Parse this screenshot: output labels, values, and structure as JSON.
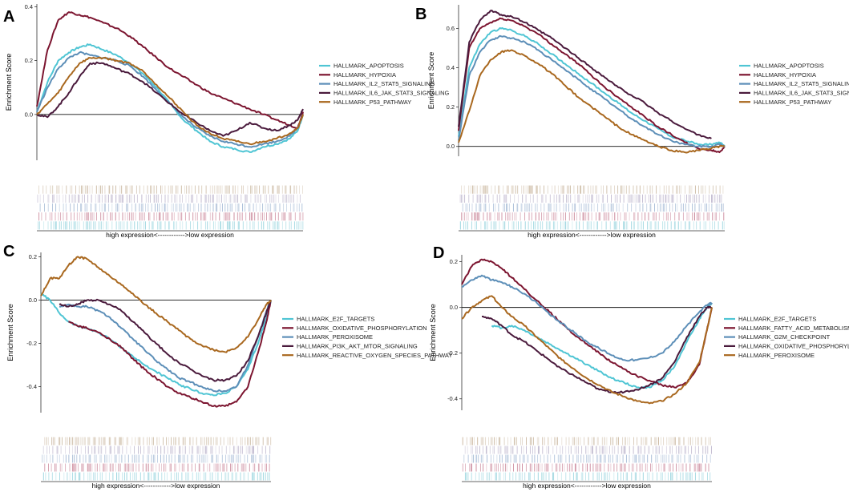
{
  "colors": {
    "cyan": "#4fc5d4",
    "crimson": "#7c1530",
    "steel": "#5d8fb8",
    "plum": "#4a1a3c",
    "ochre": "#a9681f"
  },
  "chart_data": [
    {
      "panel": "A",
      "type": "line",
      "ylabel": "Enrichment Score",
      "xlabel": "high expression<------------>low expression",
      "ylim": [
        -0.17,
        0.41
      ],
      "y_ticks": [
        0.0,
        0.2,
        0.4
      ],
      "y_tick_labels": [
        "0.0",
        "0.2",
        "0.4"
      ],
      "x": [
        0,
        0.04,
        0.08,
        0.12,
        0.16,
        0.2,
        0.25,
        0.3,
        0.35,
        0.4,
        0.45,
        0.5,
        0.55,
        0.6,
        0.65,
        0.7,
        0.75,
        0.8,
        0.85,
        0.9,
        0.95,
        0.98,
        1
      ],
      "series": [
        {
          "name": "HALLMARK_APOPTOSIS",
          "color": "cyan",
          "values": [
            0.01,
            0.12,
            0.2,
            0.23,
            0.25,
            0.26,
            0.24,
            0.22,
            0.19,
            0.15,
            0.1,
            0.04,
            -0.02,
            -0.06,
            -0.1,
            -0.12,
            -0.13,
            -0.14,
            -0.12,
            -0.11,
            -0.09,
            -0.06,
            0.0
          ]
        },
        {
          "name": "HALLMARK_HYPOXIA",
          "color": "crimson",
          "values": [
            0.03,
            0.24,
            0.35,
            0.38,
            0.37,
            0.36,
            0.34,
            0.32,
            0.29,
            0.25,
            0.21,
            0.17,
            0.14,
            0.11,
            0.08,
            0.06,
            0.04,
            0.02,
            0.0,
            -0.02,
            -0.04,
            -0.05,
            0.01
          ]
        },
        {
          "name": "HALLMARK_IL2_STAT5_SIGNALING",
          "color": "steel",
          "values": [
            0.01,
            0.1,
            0.17,
            0.21,
            0.23,
            0.22,
            0.21,
            0.2,
            0.18,
            0.14,
            0.09,
            0.04,
            -0.01,
            -0.05,
            -0.08,
            -0.1,
            -0.11,
            -0.12,
            -0.11,
            -0.1,
            -0.08,
            -0.05,
            0.0
          ]
        },
        {
          "name": "HALLMARK_IL6_JAK_STAT3_SIGNALING",
          "color": "plum",
          "values": [
            0.0,
            -0.01,
            0.03,
            0.08,
            0.14,
            0.19,
            0.19,
            0.17,
            0.15,
            0.12,
            0.08,
            0.04,
            0.0,
            -0.03,
            -0.06,
            -0.08,
            -0.06,
            -0.03,
            -0.05,
            -0.06,
            -0.04,
            -0.02,
            0.02
          ]
        },
        {
          "name": "HALLMARK_P53_PATHWAY",
          "color": "ochre",
          "values": [
            0.0,
            0.04,
            0.08,
            0.14,
            0.19,
            0.21,
            0.21,
            0.2,
            0.19,
            0.16,
            0.11,
            0.06,
            0.01,
            -0.04,
            -0.07,
            -0.09,
            -0.1,
            -0.11,
            -0.1,
            -0.09,
            -0.07,
            -0.05,
            0.0
          ]
        }
      ]
    },
    {
      "panel": "B",
      "type": "line",
      "ylabel": "Enrichment Score",
      "xlabel": "high expression<------------>low expression",
      "ylim": [
        -0.05,
        0.72
      ],
      "y_ticks": [
        0.0,
        0.2,
        0.4,
        0.6
      ],
      "y_tick_labels": [
        "0.0",
        "0.2",
        "0.4",
        "0.6"
      ],
      "x": [
        0,
        0.04,
        0.08,
        0.12,
        0.16,
        0.2,
        0.25,
        0.3,
        0.35,
        0.4,
        0.45,
        0.5,
        0.55,
        0.6,
        0.65,
        0.7,
        0.75,
        0.8,
        0.85,
        0.9,
        0.95,
        0.98,
        1
      ],
      "series": [
        {
          "name": "HALLMARK_APOPTOSIS",
          "color": "cyan",
          "values": [
            0.05,
            0.4,
            0.52,
            0.58,
            0.6,
            0.59,
            0.56,
            0.52,
            0.47,
            0.42,
            0.37,
            0.32,
            0.27,
            0.22,
            0.17,
            0.13,
            0.09,
            0.05,
            0.03,
            0.01,
            0.01,
            0.02,
            0.0
          ]
        },
        {
          "name": "HALLMARK_HYPOXIA",
          "color": "crimson",
          "values": [
            0.08,
            0.5,
            0.6,
            0.63,
            0.65,
            0.64,
            0.61,
            0.57,
            0.52,
            0.47,
            0.42,
            0.36,
            0.3,
            0.25,
            0.2,
            0.15,
            0.1,
            0.06,
            0.02,
            -0.01,
            -0.02,
            -0.03,
            0.0
          ]
        },
        {
          "name": "HALLMARK_IL2_STAT5_SIGNALING",
          "color": "steel",
          "values": [
            0.03,
            0.36,
            0.48,
            0.54,
            0.56,
            0.55,
            0.53,
            0.49,
            0.44,
            0.39,
            0.34,
            0.29,
            0.24,
            0.19,
            0.14,
            0.1,
            0.06,
            0.03,
            0.01,
            0.0,
            0.0,
            0.01,
            0.0
          ]
        },
        {
          "name": "HALLMARK_IL6_JAK_STAT3_SIGNALING",
          "color": "plum",
          "values": [
            0.1,
            0.53,
            0.64,
            0.69,
            0.67,
            0.66,
            0.63,
            0.59,
            0.55,
            0.5,
            0.45,
            0.4,
            0.35,
            0.3,
            0.26,
            0.22,
            0.17,
            0.13,
            0.09,
            0.06,
            0.04,
            null,
            null
          ]
        },
        {
          "name": "HALLMARK_P53_PATHWAY",
          "color": "ochre",
          "values": [
            0.02,
            0.18,
            0.36,
            0.44,
            0.48,
            0.49,
            0.46,
            0.42,
            0.37,
            0.31,
            0.25,
            0.2,
            0.15,
            0.1,
            0.06,
            0.03,
            0.0,
            -0.02,
            -0.03,
            -0.02,
            -0.01,
            0.0,
            0.0
          ]
        }
      ]
    },
    {
      "panel": "C",
      "type": "line",
      "ylabel": "Enrichment Score",
      "xlabel": "high expression<------------>low expression",
      "ylim": [
        -0.52,
        0.22
      ],
      "y_ticks": [
        -0.4,
        -0.2,
        0.0,
        0.2
      ],
      "y_tick_labels": [
        "-0.4",
        "-0.2",
        "0.0",
        "0.2"
      ],
      "x": [
        0,
        0.04,
        0.08,
        0.12,
        0.16,
        0.2,
        0.25,
        0.3,
        0.35,
        0.4,
        0.45,
        0.5,
        0.55,
        0.6,
        0.65,
        0.7,
        0.75,
        0.8,
        0.85,
        0.9,
        0.95,
        0.98,
        1
      ],
      "series": [
        {
          "name": "HALLMARK_E2F_TARGETS",
          "color": "cyan",
          "values": [
            0.03,
            0.0,
            -0.06,
            -0.1,
            -0.12,
            -0.13,
            -0.15,
            -0.18,
            -0.22,
            -0.26,
            -0.3,
            -0.33,
            -0.36,
            -0.39,
            -0.41,
            -0.43,
            -0.44,
            -0.43,
            -0.4,
            -0.32,
            -0.18,
            -0.08,
            0.0
          ]
        },
        {
          "name": "HALLMARK_OXIDATIVE_PHOSPHORYLATION",
          "color": "crimson",
          "values": [
            null,
            null,
            null,
            -0.1,
            -0.12,
            -0.13,
            -0.15,
            -0.18,
            -0.22,
            -0.27,
            -0.32,
            -0.36,
            -0.4,
            -0.43,
            -0.45,
            -0.47,
            -0.49,
            -0.49,
            -0.47,
            -0.4,
            -0.22,
            -0.1,
            0.0
          ]
        },
        {
          "name": "HALLMARK_PEROXISOME",
          "color": "steel",
          "values": [
            null,
            null,
            -0.03,
            -0.02,
            -0.03,
            -0.03,
            -0.05,
            -0.08,
            -0.13,
            -0.18,
            -0.23,
            -0.28,
            -0.32,
            -0.36,
            -0.38,
            -0.4,
            -0.42,
            -0.42,
            -0.4,
            -0.3,
            -0.15,
            -0.05,
            0.0
          ]
        },
        {
          "name": "HALLMARK_PI3K_AKT_MTOR_SIGNALING",
          "color": "plum",
          "values": [
            null,
            null,
            -0.02,
            -0.03,
            -0.02,
            0.0,
            0.0,
            -0.02,
            -0.05,
            -0.1,
            -0.15,
            -0.2,
            -0.25,
            -0.29,
            -0.32,
            -0.35,
            -0.37,
            -0.37,
            -0.35,
            -0.28,
            -0.15,
            -0.06,
            0.0
          ]
        },
        {
          "name": "HALLMARK_REACTIVE_OXYGEN_SPECIES_PATHWAY",
          "color": "ochre",
          "values": [
            0.02,
            0.1,
            0.1,
            0.16,
            0.2,
            0.19,
            0.15,
            0.11,
            0.07,
            0.03,
            -0.02,
            -0.06,
            -0.1,
            -0.14,
            -0.18,
            -0.21,
            -0.23,
            -0.24,
            -0.22,
            -0.17,
            -0.08,
            -0.02,
            0.0
          ]
        }
      ]
    },
    {
      "panel": "D",
      "type": "line",
      "ylabel": "Enrichment Score",
      "xlabel": "high expression<------------>low expression",
      "ylim": [
        -0.45,
        0.23
      ],
      "y_ticks": [
        -0.4,
        -0.2,
        0.0,
        0.2
      ],
      "y_tick_labels": [
        "-0.4",
        "-0.2",
        "0.0",
        "0.2"
      ],
      "x": [
        0,
        0.04,
        0.08,
        0.12,
        0.16,
        0.2,
        0.25,
        0.3,
        0.35,
        0.4,
        0.45,
        0.5,
        0.55,
        0.6,
        0.65,
        0.7,
        0.75,
        0.8,
        0.85,
        0.9,
        0.95,
        0.98,
        1
      ],
      "series": [
        {
          "name": "HALLMARK_E2F_TARGETS",
          "color": "cyan",
          "values": [
            null,
            null,
            null,
            -0.08,
            -0.09,
            -0.08,
            -0.1,
            -0.13,
            -0.16,
            -0.19,
            -0.22,
            -0.25,
            -0.28,
            -0.31,
            -0.33,
            -0.35,
            -0.35,
            -0.32,
            -0.26,
            -0.15,
            -0.05,
            0.0,
            0.02
          ]
        },
        {
          "name": "HALLMARK_FATTY_ACID_METABOLISM",
          "color": "crimson",
          "values": [
            0.1,
            0.18,
            0.21,
            0.2,
            0.17,
            0.13,
            0.08,
            0.03,
            -0.02,
            -0.07,
            -0.12,
            -0.16,
            -0.2,
            -0.24,
            -0.27,
            -0.3,
            -0.32,
            -0.34,
            -0.35,
            -0.33,
            -0.25,
            -0.1,
            0.0
          ]
        },
        {
          "name": "HALLMARK_G2M_CHECKPOINT",
          "color": "steel",
          "values": [
            0.09,
            0.12,
            0.14,
            0.12,
            0.11,
            0.09,
            0.06,
            0.02,
            -0.03,
            -0.07,
            -0.11,
            -0.15,
            -0.18,
            -0.21,
            -0.23,
            -0.23,
            -0.22,
            -0.2,
            -0.15,
            -0.08,
            -0.02,
            0.01,
            0.02
          ]
        },
        {
          "name": "HALLMARK_OXIDATIVE_PHOSPHORYLATION",
          "color": "plum",
          "values": [
            null,
            null,
            -0.04,
            -0.05,
            -0.08,
            -0.12,
            -0.15,
            -0.19,
            -0.23,
            -0.27,
            -0.3,
            -0.33,
            -0.36,
            -0.37,
            -0.37,
            -0.36,
            -0.34,
            -0.31,
            -0.24,
            -0.13,
            -0.04,
            0.0,
            0.0
          ]
        },
        {
          "name": "HALLMARK_PEROXISOME",
          "color": "ochre",
          "values": [
            -0.05,
            0.0,
            0.03,
            0.05,
            0.0,
            -0.04,
            -0.08,
            -0.13,
            -0.18,
            -0.23,
            -0.27,
            -0.31,
            -0.34,
            -0.37,
            -0.39,
            -0.41,
            -0.42,
            -0.41,
            -0.38,
            -0.33,
            -0.24,
            -0.1,
            0.0
          ]
        }
      ]
    }
  ]
}
